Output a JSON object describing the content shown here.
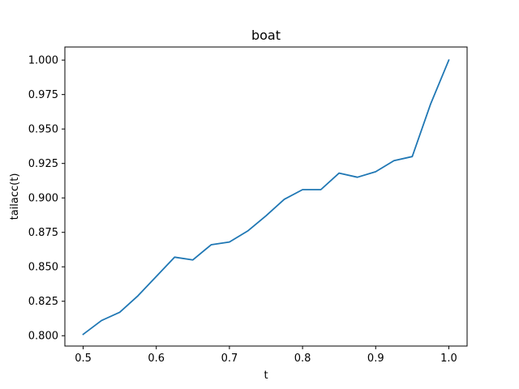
{
  "chart_data": {
    "type": "line",
    "title": "boat",
    "xlabel": "t",
    "ylabel": "tailacc(t)",
    "xlim": [
      0.475,
      1.025
    ],
    "ylim": [
      0.7925,
      1.0095
    ],
    "xticks": [
      0.5,
      0.6,
      0.7,
      0.8,
      0.9,
      1.0
    ],
    "xtick_labels": [
      "0.5",
      "0.6",
      "0.7",
      "0.8",
      "0.9",
      "1.0"
    ],
    "yticks": [
      0.8,
      0.825,
      0.85,
      0.875,
      0.9,
      0.925,
      0.95,
      0.975,
      1.0
    ],
    "ytick_labels": [
      "0.800",
      "0.825",
      "0.850",
      "0.875",
      "0.900",
      "0.925",
      "0.950",
      "0.975",
      "1.000"
    ],
    "grid": false,
    "series": [
      {
        "color": "#1f77b4",
        "x": [
          0.5,
          0.525,
          0.55,
          0.575,
          0.6,
          0.625,
          0.65,
          0.675,
          0.7,
          0.725,
          0.75,
          0.775,
          0.8,
          0.825,
          0.85,
          0.875,
          0.9,
          0.925,
          0.95,
          0.975,
          1.0
        ],
        "y": [
          0.801,
          0.811,
          0.817,
          0.829,
          0.843,
          0.857,
          0.855,
          0.866,
          0.868,
          0.876,
          0.887,
          0.899,
          0.906,
          0.906,
          0.918,
          0.915,
          0.919,
          0.927,
          0.93,
          0.968,
          1.0
        ]
      }
    ]
  }
}
